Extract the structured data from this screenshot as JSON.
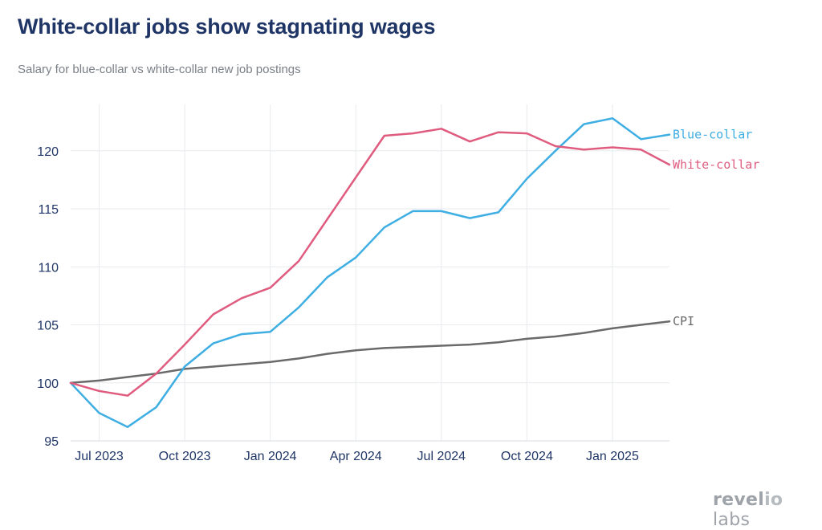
{
  "title": "White-collar jobs show stagnating wages",
  "subtitle": "Salary for blue-collar vs white-collar new job postings",
  "logo": {
    "part1": "revel",
    "mark": "io",
    "part2": " labs"
  },
  "chart_data": {
    "type": "line",
    "x": [
      "2023-06",
      "2023-07",
      "2023-08",
      "2023-09",
      "2023-10",
      "2023-11",
      "2023-12",
      "2024-01",
      "2024-02",
      "2024-03",
      "2024-04",
      "2024-05",
      "2024-06",
      "2024-07",
      "2024-08",
      "2024-09",
      "2024-10",
      "2024-11",
      "2024-12",
      "2025-01",
      "2025-02",
      "2025-03"
    ],
    "ylim": [
      95,
      124
    ],
    "yticks": [
      95,
      100,
      105,
      110,
      115,
      120
    ],
    "xticks": [
      {
        "x": "2023-07",
        "label": "Jul 2023"
      },
      {
        "x": "2023-10",
        "label": "Oct 2023"
      },
      {
        "x": "2024-01",
        "label": "Jan 2024"
      },
      {
        "x": "2024-04",
        "label": "Apr 2024"
      },
      {
        "x": "2024-07",
        "label": "Jul 2024"
      },
      {
        "x": "2024-10",
        "label": "Oct 2024"
      },
      {
        "x": "2025-01",
        "label": "Jan 2025"
      }
    ],
    "grid": true,
    "series": [
      {
        "name": "Blue-collar",
        "color": "#3eaee3",
        "values": [
          100.0,
          97.4,
          96.2,
          97.9,
          101.4,
          103.4,
          104.2,
          104.4,
          106.5,
          109.1,
          110.8,
          113.4,
          114.8,
          114.8,
          114.2,
          114.7,
          117.6,
          120.0,
          122.3,
          122.8,
          121.0,
          121.4
        ]
      },
      {
        "name": "White-collar",
        "color": "#e05c7f",
        "values": [
          100.0,
          99.3,
          98.9,
          100.8,
          103.3,
          105.9,
          107.3,
          108.2,
          110.5,
          114.1,
          117.7,
          121.3,
          121.5,
          121.9,
          120.8,
          121.6,
          121.5,
          120.4,
          120.1,
          120.3,
          120.1,
          118.8
        ]
      },
      {
        "name": "CPI",
        "color": "#6a6a6a",
        "values": [
          100.0,
          100.2,
          100.5,
          100.8,
          101.2,
          101.4,
          101.6,
          101.8,
          102.1,
          102.5,
          102.8,
          103.0,
          103.1,
          103.2,
          103.3,
          103.5,
          103.8,
          104.0,
          104.3,
          104.7,
          105.0,
          105.3
        ]
      }
    ]
  }
}
